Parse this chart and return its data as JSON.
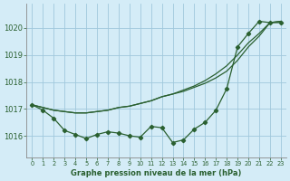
{
  "title": "Graphe pression niveau de la mer (hPa)",
  "bg_color": "#d4ecf7",
  "grid_color": "#a0c8dc",
  "line_color": "#2a6030",
  "xlim": [
    -0.5,
    23.5
  ],
  "ylim": [
    1015.2,
    1020.9
  ],
  "yticks": [
    1016,
    1017,
    1018,
    1019,
    1020
  ],
  "xticks": [
    0,
    1,
    2,
    3,
    4,
    5,
    6,
    7,
    8,
    9,
    10,
    11,
    12,
    13,
    14,
    15,
    16,
    17,
    18,
    19,
    20,
    21,
    22,
    23
  ],
  "series_marker": [
    1017.15,
    1016.95,
    1016.65,
    1016.2,
    1016.05,
    1015.9,
    1016.05,
    1016.15,
    1016.1,
    1016.0,
    1015.95,
    1016.35,
    1016.3,
    1015.75,
    1015.85,
    1016.25,
    1016.5,
    1016.95,
    1017.75,
    1019.3,
    1019.8,
    1020.25,
    1020.2,
    1020.2
  ],
  "series_line1": [
    1017.15,
    1017.05,
    1016.95,
    1016.9,
    1016.85,
    1016.85,
    1016.9,
    1016.95,
    1017.05,
    1017.1,
    1017.2,
    1017.3,
    1017.45,
    1017.55,
    1017.7,
    1017.85,
    1018.05,
    1018.3,
    1018.6,
    1019.0,
    1019.45,
    1019.8,
    1020.2,
    1020.25
  ],
  "series_line2": [
    1017.15,
    1017.05,
    1016.95,
    1016.9,
    1016.85,
    1016.85,
    1016.9,
    1016.95,
    1017.05,
    1017.1,
    1017.2,
    1017.3,
    1017.45,
    1017.55,
    1017.65,
    1017.8,
    1017.95,
    1018.15,
    1018.4,
    1018.8,
    1019.3,
    1019.7,
    1020.2,
    1020.25
  ]
}
